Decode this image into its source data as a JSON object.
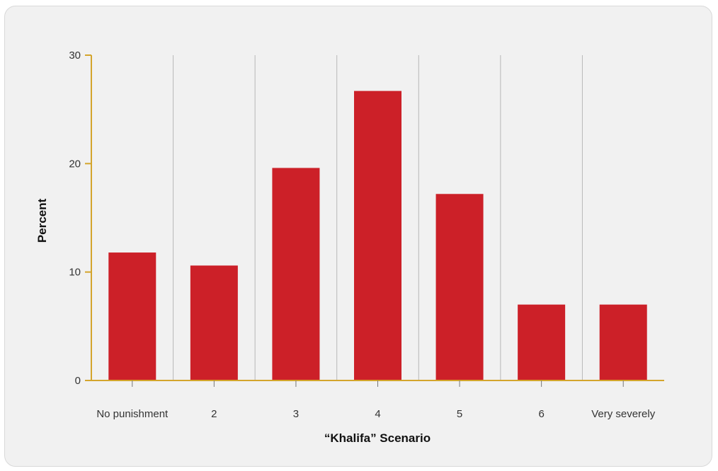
{
  "chart_data": {
    "type": "bar",
    "categories": [
      "No punishment",
      "2",
      "3",
      "4",
      "5",
      "6",
      "Very severely"
    ],
    "values": [
      11.8,
      10.6,
      19.6,
      26.7,
      17.2,
      7.0,
      7.0
    ],
    "xlabel": "“Khalifa” Scenario",
    "ylabel": "Percent",
    "ylim": [
      0,
      30
    ],
    "yticks": [
      0,
      10,
      20,
      30
    ],
    "grid": "vertical category separators",
    "colors": {
      "bar": "#cc2028",
      "axis": "#d4a52c",
      "grid": "#b8b8b8",
      "background": "#f1f1f1"
    }
  }
}
